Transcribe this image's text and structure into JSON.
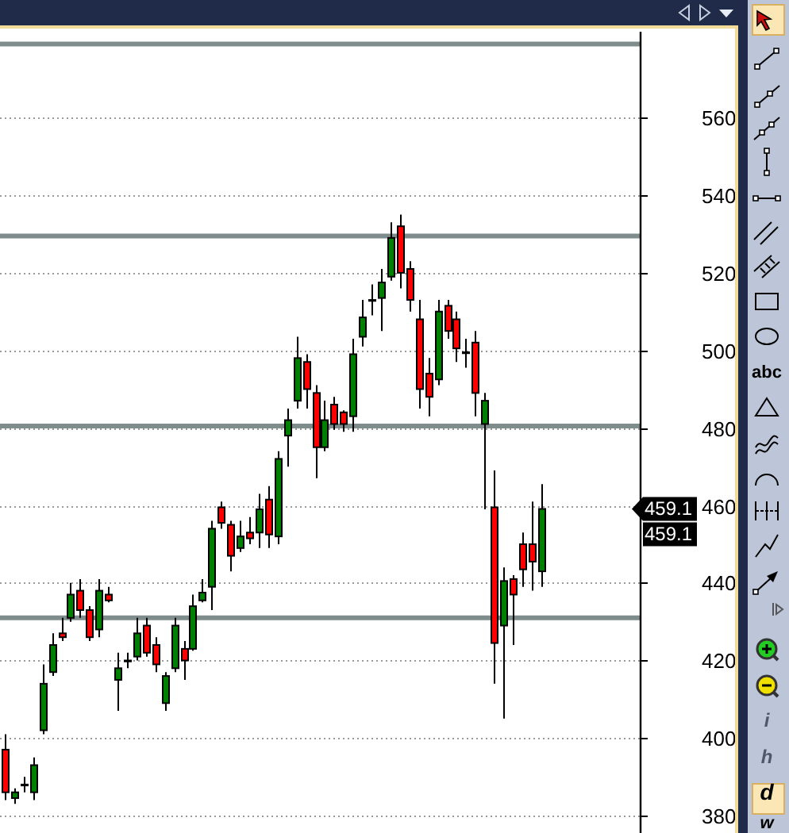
{
  "chart_data": {
    "type": "candlestick",
    "categories": [
      null,
      null,
      null,
      null,
      null,
      null,
      null,
      null,
      null,
      null,
      null,
      null,
      null,
      null,
      null,
      null,
      null,
      null,
      null,
      null,
      null,
      null,
      null,
      null,
      null,
      null,
      null,
      null,
      null,
      null,
      null,
      null,
      null,
      null,
      null,
      null,
      null,
      null,
      null,
      null,
      null,
      null,
      null,
      null,
      null,
      null,
      null,
      null,
      null,
      null,
      null,
      null,
      null,
      null,
      null,
      null,
      null,
      null,
      null,
      null,
      null,
      null,
      null,
      null,
      null,
      null,
      null,
      null
    ],
    "ohlc": [
      [
        397,
        401,
        384,
        386
      ],
      [
        384.5,
        387,
        383,
        386
      ],
      [
        388,
        390,
        386,
        388
      ],
      [
        386,
        395,
        384,
        393
      ],
      [
        402,
        419,
        401,
        414
      ],
      [
        417,
        427,
        416,
        424
      ],
      [
        427,
        431,
        425,
        426
      ],
      [
        431,
        440,
        430,
        437
      ],
      [
        438,
        441,
        431,
        433
      ],
      [
        433,
        434,
        425,
        426
      ],
      [
        428,
        441,
        426,
        438
      ],
      [
        437,
        439,
        435,
        435.5
      ],
      [
        415,
        422,
        407,
        418
      ],
      [
        420,
        422,
        418,
        420
      ],
      [
        421,
        431,
        420,
        427
      ],
      [
        429,
        431,
        421,
        422
      ],
      [
        424,
        426,
        417,
        419
      ],
      [
        409,
        417,
        407,
        416
      ],
      [
        418,
        431,
        417,
        429
      ],
      [
        423,
        425,
        415,
        420
      ],
      [
        423,
        437,
        422.5,
        434
      ],
      [
        435.5,
        441,
        435,
        437.5
      ],
      [
        439,
        456,
        433,
        454
      ],
      [
        459.5,
        461,
        454,
        455.5
      ],
      [
        455,
        456,
        443,
        447
      ],
      [
        449,
        456,
        448,
        452
      ],
      [
        453,
        457,
        450,
        451.5
      ],
      [
        453,
        463,
        449,
        459
      ],
      [
        461.5,
        465,
        449,
        452.5
      ],
      [
        452,
        474,
        450,
        472
      ],
      [
        478,
        485,
        470,
        482
      ],
      [
        487,
        503.5,
        485,
        498
      ],
      [
        497,
        499,
        485,
        490
      ],
      [
        489,
        491,
        467,
        475
      ],
      [
        475,
        487,
        474,
        482
      ],
      [
        486,
        488,
        479.5,
        481
      ],
      [
        484,
        484.5,
        479,
        481
      ],
      [
        483,
        503,
        479,
        499
      ],
      [
        503.5,
        513,
        501,
        508.5
      ],
      [
        513,
        517,
        509,
        513
      ],
      [
        513.5,
        521,
        505,
        517.5
      ],
      [
        519,
        533,
        518,
        529
      ],
      [
        532,
        535,
        516,
        520
      ],
      [
        521,
        523,
        510,
        513
      ],
      [
        508,
        513,
        485,
        490
      ],
      [
        494,
        498,
        483,
        488
      ],
      [
        492.5,
        513,
        491,
        510
      ],
      [
        511.5,
        513,
        503,
        505
      ],
      [
        508,
        510,
        497,
        500.5
      ],
      [
        499.5,
        503,
        495.5,
        499.5
      ],
      [
        502,
        505,
        483,
        489
      ],
      [
        481,
        489,
        459,
        487
      ],
      [
        459.5,
        469,
        414,
        424.5
      ],
      [
        429,
        444,
        405,
        440.5
      ],
      [
        441,
        442,
        424,
        437
      ],
      [
        450,
        453,
        439,
        443.5
      ],
      [
        450,
        461,
        438,
        445.5
      ],
      [
        443,
        465.5,
        439,
        459.1
      ],
      null,
      null,
      null,
      null,
      null,
      null,
      null,
      null,
      null,
      null
    ],
    "colors": [
      "#ff0000",
      "#008000",
      "#000000",
      "#008000",
      "#008000",
      "#008000",
      "#ff0000",
      "#008000",
      "#ff0000",
      "#ff0000",
      "#008000",
      "#ff0000",
      "#008000",
      "#000000",
      "#008000",
      "#ff0000",
      "#ff0000",
      "#008000",
      "#008000",
      "#ff0000",
      "#008000",
      "#008000",
      "#008000",
      "#ff0000",
      "#ff0000",
      "#008000",
      "#ff0000",
      "#008000",
      "#ff0000",
      "#008000",
      "#008000",
      "#008000",
      "#ff0000",
      "#ff0000",
      "#008000",
      "#ff0000",
      "#ff0000",
      "#008000",
      "#008000",
      "#000000",
      "#008000",
      "#008000",
      "#ff0000",
      "#ff0000",
      "#ff0000",
      "#ff0000",
      "#008000",
      "#ff0000",
      "#ff0000",
      "#000000",
      "#ff0000",
      "#008000",
      "#ff0000",
      "#008000",
      "#ff0000",
      "#ff0000",
      "#ff0000",
      "#008000",
      null,
      null,
      null,
      null,
      null,
      null,
      null,
      null,
      null,
      null
    ],
    "ylim": [
      380,
      583
    ],
    "yticks": [
      380,
      400,
      420,
      440,
      460,
      480,
      500,
      520,
      540,
      560
    ],
    "grid": "y",
    "ref_lines": [
      {
        "axis": "y",
        "value": 579,
        "color": "#7f8c8c"
      },
      {
        "axis": "y",
        "value": 529.5,
        "color": "#7f8c8c"
      },
      {
        "axis": "y",
        "value": 480.5,
        "color": "#7f8c8c"
      },
      {
        "axis": "y",
        "value": 431,
        "color": "#7f8c8c"
      }
    ],
    "annotations": [
      "459.1",
      "459.1",
      "abc",
      "i",
      "h",
      "d",
      "w"
    ]
  }
}
